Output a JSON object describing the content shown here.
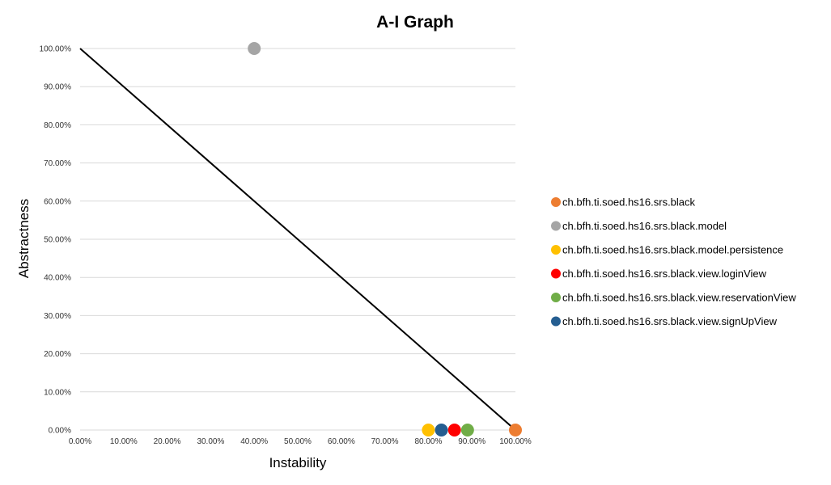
{
  "chart_data": {
    "type": "scatter",
    "title": "A-I Graph",
    "xlabel": "Instability",
    "ylabel": "Abstractness",
    "xlim": [
      0,
      1
    ],
    "ylim": [
      0,
      1
    ],
    "x_ticks": [
      "0.00%",
      "10.00%",
      "20.00%",
      "30.00%",
      "40.00%",
      "50.00%",
      "60.00%",
      "70.00%",
      "80.00%",
      "90.00%",
      "100.00%"
    ],
    "y_ticks": [
      "0.00%",
      "10.00%",
      "20.00%",
      "30.00%",
      "40.00%",
      "50.00%",
      "60.00%",
      "70.00%",
      "80.00%",
      "90.00%",
      "100.00%"
    ],
    "grid": "horizontal",
    "legend_position": "right",
    "main_sequence_line": [
      [
        0,
        1
      ],
      [
        1,
        0
      ]
    ],
    "series": [
      {
        "name": "ch.bfh.ti.soed.hs16.srs.black",
        "color": "#ed7d31",
        "points": [
          [
            1.0,
            0.0
          ]
        ]
      },
      {
        "name": "ch.bfh.ti.soed.hs16.srs.black.model",
        "color": "#a5a5a5",
        "points": [
          [
            0.4,
            1.0
          ]
        ]
      },
      {
        "name": "ch.bfh.ti.soed.hs16.srs.black.model.persistence",
        "color": "#ffc000",
        "points": [
          [
            0.8,
            0.0
          ]
        ]
      },
      {
        "name": "ch.bfh.ti.soed.hs16.srs.black.view.loginView",
        "color": "#ff0000",
        "points": [
          [
            0.86,
            0.0
          ]
        ]
      },
      {
        "name": "ch.bfh.ti.soed.hs16.srs.black.view.reservationView",
        "color": "#70ad47",
        "points": [
          [
            0.89,
            0.0
          ]
        ]
      },
      {
        "name": "ch.bfh.ti.soed.hs16.srs.black.view.signUpView",
        "color": "#255e91",
        "points": [
          [
            0.83,
            0.0
          ]
        ]
      }
    ]
  }
}
